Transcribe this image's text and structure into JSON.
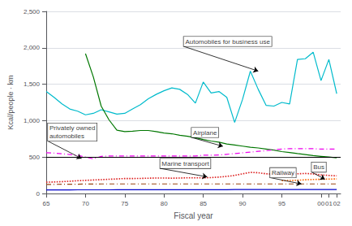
{
  "chart_data": {
    "type": "line",
    "xlabel": "Fiscal year",
    "ylabel": "Kcal/people · km",
    "xlim": [
      65,
      102.5
    ],
    "ylim": [
      0,
      2500
    ],
    "xticks": [
      65,
      70,
      75,
      80,
      85,
      90,
      95,
      {
        "value": 100,
        "label": "00"
      },
      {
        "value": 101,
        "label": "01"
      },
      {
        "value": 102,
        "label": "02"
      }
    ],
    "yticks": [
      0,
      500,
      {
        "value": 1000,
        "label": "1,000"
      },
      {
        "value": 1500,
        "label": "1,500"
      },
      {
        "value": 2000,
        "label": "2,000"
      },
      {
        "value": 2500,
        "label": "2,500"
      }
    ],
    "grid": true,
    "series": [
      {
        "color": "#0000CC",
        "line_style": "solid",
        "x": [
          65,
          66,
          67,
          68,
          69,
          70,
          71,
          72,
          73,
          74,
          75,
          76,
          77,
          78,
          79,
          80,
          81,
          82,
          83,
          84,
          85,
          86,
          87,
          88,
          89,
          90,
          91,
          92,
          93,
          94,
          95,
          96,
          97,
          98,
          99,
          100,
          101,
          102
        ],
        "values": [
          48,
          48,
          48,
          48,
          50,
          50,
          50,
          50,
          50,
          52,
          52,
          52,
          52,
          52,
          52,
          52,
          52,
          52,
          52,
          52,
          52,
          52,
          52,
          52,
          55,
          55,
          55,
          55,
          55,
          55,
          55,
          55,
          55,
          55,
          55,
          55,
          55,
          55
        ]
      },
      {
        "color": "#00BBCC",
        "line_style": "solid",
        "x": [
          65,
          66,
          67,
          68,
          69,
          70,
          71,
          72,
          73,
          74,
          75,
          76,
          77,
          78,
          79,
          80,
          81,
          82,
          83,
          84,
          85,
          86,
          87,
          88,
          89,
          90,
          91,
          92,
          93,
          94,
          95,
          96,
          97,
          98,
          99,
          100,
          101,
          102
        ],
        "values": [
          1400,
          1320,
          1230,
          1160,
          1130,
          1080,
          1100,
          1150,
          1120,
          1090,
          1100,
          1160,
          1220,
          1300,
          1360,
          1410,
          1450,
          1430,
          1360,
          1240,
          1530,
          1380,
          1400,
          1320,
          975,
          1290,
          1680,
          1430,
          1210,
          1200,
          1250,
          1230,
          1840,
          1850,
          1940,
          1550,
          1840,
          1370
        ]
      },
      {
        "color": "#007700",
        "line_style": "solid",
        "x": [
          65,
          66,
          67,
          68,
          69,
          70,
          71,
          72,
          73,
          74,
          75,
          76,
          77,
          78,
          79,
          80,
          81,
          82,
          83,
          84,
          85,
          86,
          87,
          88,
          89,
          90,
          91,
          92,
          93,
          94,
          95,
          96,
          97,
          98,
          99,
          100,
          101,
          102
        ],
        "values": [
          null,
          null,
          null,
          null,
          null,
          1920,
          1600,
          1200,
          1010,
          870,
          850,
          855,
          865,
          865,
          850,
          830,
          820,
          800,
          785,
          765,
          740,
          720,
          705,
          680,
          665,
          650,
          635,
          625,
          610,
          595,
          575,
          562,
          548,
          535,
          520,
          510,
          500,
          490
        ]
      },
      {
        "color": "#EE00EE",
        "line_style": "dashdot",
        "x": [
          65,
          66,
          67,
          68,
          69,
          70,
          71,
          72,
          73,
          74,
          75,
          76,
          77,
          78,
          79,
          80,
          81,
          82,
          83,
          84,
          85,
          86,
          87,
          88,
          89,
          90,
          91,
          92,
          93,
          94,
          95,
          96,
          97,
          98,
          99,
          100,
          101,
          102
        ],
        "values": [
          560,
          555,
          545,
          535,
          525,
          500,
          475,
          510,
          515,
          515,
          515,
          515,
          515,
          515,
          515,
          515,
          515,
          515,
          515,
          515,
          525,
          525,
          528,
          538,
          548,
          558,
          568,
          578,
          588,
          600,
          610,
          615,
          615,
          615,
          615,
          610,
          610,
          610
        ]
      },
      {
        "color": "#DD2222",
        "line_style": "dotted",
        "x": [
          65,
          66,
          67,
          68,
          69,
          70,
          71,
          72,
          73,
          74,
          75,
          76,
          77,
          78,
          79,
          80,
          81,
          82,
          83,
          84,
          85,
          86,
          87,
          88,
          89,
          90,
          91,
          92,
          93,
          94,
          95,
          96,
          97,
          98,
          99,
          100,
          101,
          102
        ],
        "values": [
          155,
          158,
          162,
          168,
          175,
          180,
          185,
          190,
          195,
          200,
          205,
          205,
          207,
          210,
          212,
          212,
          210,
          212,
          215,
          215,
          215,
          218,
          225,
          235,
          248,
          270,
          290,
          285,
          270,
          265,
          258,
          262,
          270,
          275,
          268,
          255,
          248,
          242
        ]
      },
      {
        "color": "#994411",
        "line_style": "dashdot",
        "x": [
          65,
          66,
          67,
          68,
          69,
          70,
          71,
          72,
          73,
          74,
          75,
          76,
          77,
          78,
          79,
          80,
          81,
          82,
          83,
          84,
          85,
          86,
          87,
          88,
          89,
          90,
          91,
          92,
          93,
          94,
          95,
          96,
          97,
          98,
          99,
          100,
          101,
          102
        ],
        "values": [
          125,
          125,
          126,
          127,
          128,
          129,
          130,
          131,
          131,
          131,
          131,
          131,
          131,
          131,
          131,
          131,
          131,
          131,
          131,
          131,
          131,
          131,
          131,
          131,
          131,
          131,
          131,
          131,
          131,
          131,
          131,
          131,
          131,
          131,
          131,
          131,
          131,
          131
        ]
      },
      {
        "color": "#FF6600",
        "line_style": "dotted",
        "x": [
          95,
          96,
          97,
          98,
          99,
          100,
          101,
          102
        ],
        "values": [
          175,
          178,
          182,
          188,
          192,
          195,
          198,
          200
        ]
      }
    ],
    "hline": 500,
    "annotations": [
      {
        "text": "Automobiles for business use",
        "xy": [
          92.0,
          1680
        ],
        "xytext": [
          82.5,
          2020
        ]
      },
      {
        "text": "Privately owned\nautomobiles",
        "xy": [
          69.5,
          480
        ],
        "xytext": [
          65.2,
          720
        ]
      },
      {
        "text": "Airplane",
        "xy": [
          87.5,
          648
        ],
        "xytext": [
          83.5,
          770
        ]
      },
      {
        "text": "Marine transport",
        "xy": [
          85.5,
          228
        ],
        "xytext": [
          79.5,
          345
        ]
      },
      {
        "text": "Railway",
        "xy": [
          97.5,
          131
        ],
        "xytext": [
          93.5,
          218
        ]
      },
      {
        "text": "Bus",
        "xy": [
          100.5,
          195
        ],
        "xytext": [
          98.8,
          295
        ]
      }
    ]
  }
}
